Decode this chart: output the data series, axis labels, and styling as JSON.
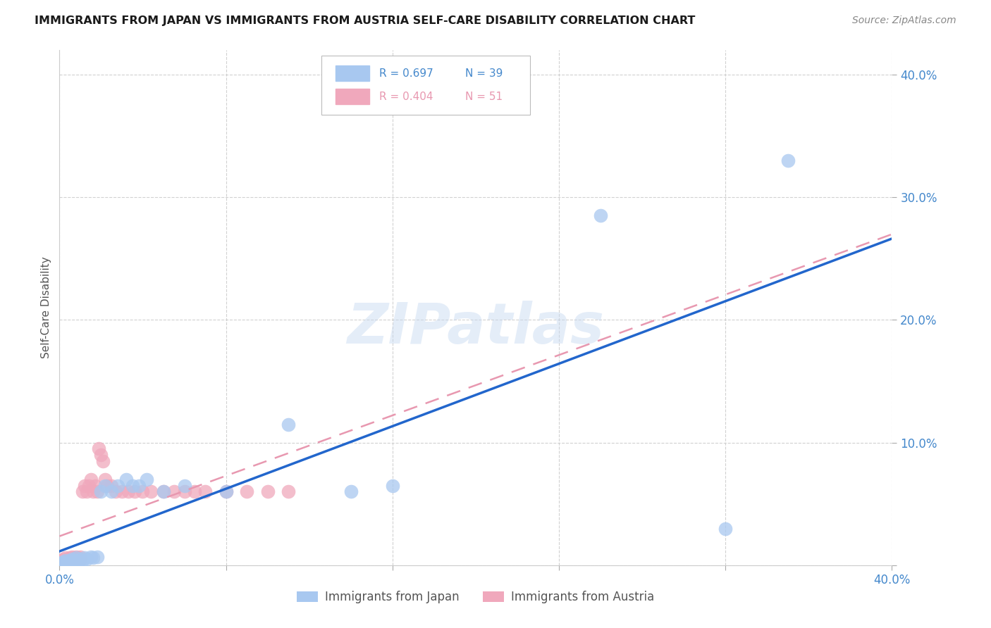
{
  "title": "IMMIGRANTS FROM JAPAN VS IMMIGRANTS FROM AUSTRIA SELF-CARE DISABILITY CORRELATION CHART",
  "source": "Source: ZipAtlas.com",
  "ylabel": "Self-Care Disability",
  "japan_color": "#a8c8f0",
  "austria_color": "#f0a8bc",
  "japan_line_color": "#2266cc",
  "austria_line_color": "#e898b0",
  "xlim": [
    0.0,
    0.4
  ],
  "ylim": [
    0.0,
    0.42
  ],
  "watermark": "ZIPatlas",
  "background_color": "#ffffff",
  "grid_color": "#dddddd",
  "japan_x": [
    0.001,
    0.002,
    0.002,
    0.003,
    0.003,
    0.004,
    0.004,
    0.005,
    0.005,
    0.006,
    0.006,
    0.007,
    0.008,
    0.008,
    0.009,
    0.01,
    0.011,
    0.012,
    0.013,
    0.015,
    0.016,
    0.018,
    0.02,
    0.022,
    0.025,
    0.028,
    0.032,
    0.035,
    0.038,
    0.042,
    0.05,
    0.06,
    0.08,
    0.11,
    0.14,
    0.16,
    0.26,
    0.32,
    0.35
  ],
  "japan_y": [
    0.002,
    0.001,
    0.003,
    0.002,
    0.004,
    0.003,
    0.002,
    0.004,
    0.003,
    0.005,
    0.004,
    0.003,
    0.004,
    0.006,
    0.003,
    0.005,
    0.004,
    0.006,
    0.005,
    0.007,
    0.006,
    0.007,
    0.06,
    0.065,
    0.06,
    0.065,
    0.07,
    0.065,
    0.065,
    0.07,
    0.06,
    0.065,
    0.06,
    0.115,
    0.06,
    0.065,
    0.285,
    0.03,
    0.33
  ],
  "austria_x": [
    0.001,
    0.001,
    0.002,
    0.002,
    0.003,
    0.003,
    0.003,
    0.004,
    0.004,
    0.005,
    0.005,
    0.005,
    0.006,
    0.006,
    0.007,
    0.007,
    0.008,
    0.008,
    0.009,
    0.009,
    0.01,
    0.01,
    0.011,
    0.012,
    0.013,
    0.014,
    0.015,
    0.016,
    0.017,
    0.018,
    0.019,
    0.02,
    0.021,
    0.022,
    0.023,
    0.025,
    0.027,
    0.03,
    0.033,
    0.036,
    0.04,
    0.044,
    0.05,
    0.055,
    0.06,
    0.065,
    0.07,
    0.08,
    0.09,
    0.1,
    0.11
  ],
  "austria_y": [
    0.002,
    0.004,
    0.003,
    0.005,
    0.002,
    0.004,
    0.006,
    0.003,
    0.005,
    0.004,
    0.006,
    0.003,
    0.005,
    0.007,
    0.004,
    0.006,
    0.005,
    0.007,
    0.004,
    0.006,
    0.005,
    0.007,
    0.06,
    0.065,
    0.06,
    0.065,
    0.07,
    0.06,
    0.065,
    0.06,
    0.095,
    0.09,
    0.085,
    0.07,
    0.065,
    0.065,
    0.06,
    0.06,
    0.06,
    0.06,
    0.06,
    0.06,
    0.06,
    0.06,
    0.06,
    0.06,
    0.06,
    0.06,
    0.06,
    0.06,
    0.06
  ]
}
